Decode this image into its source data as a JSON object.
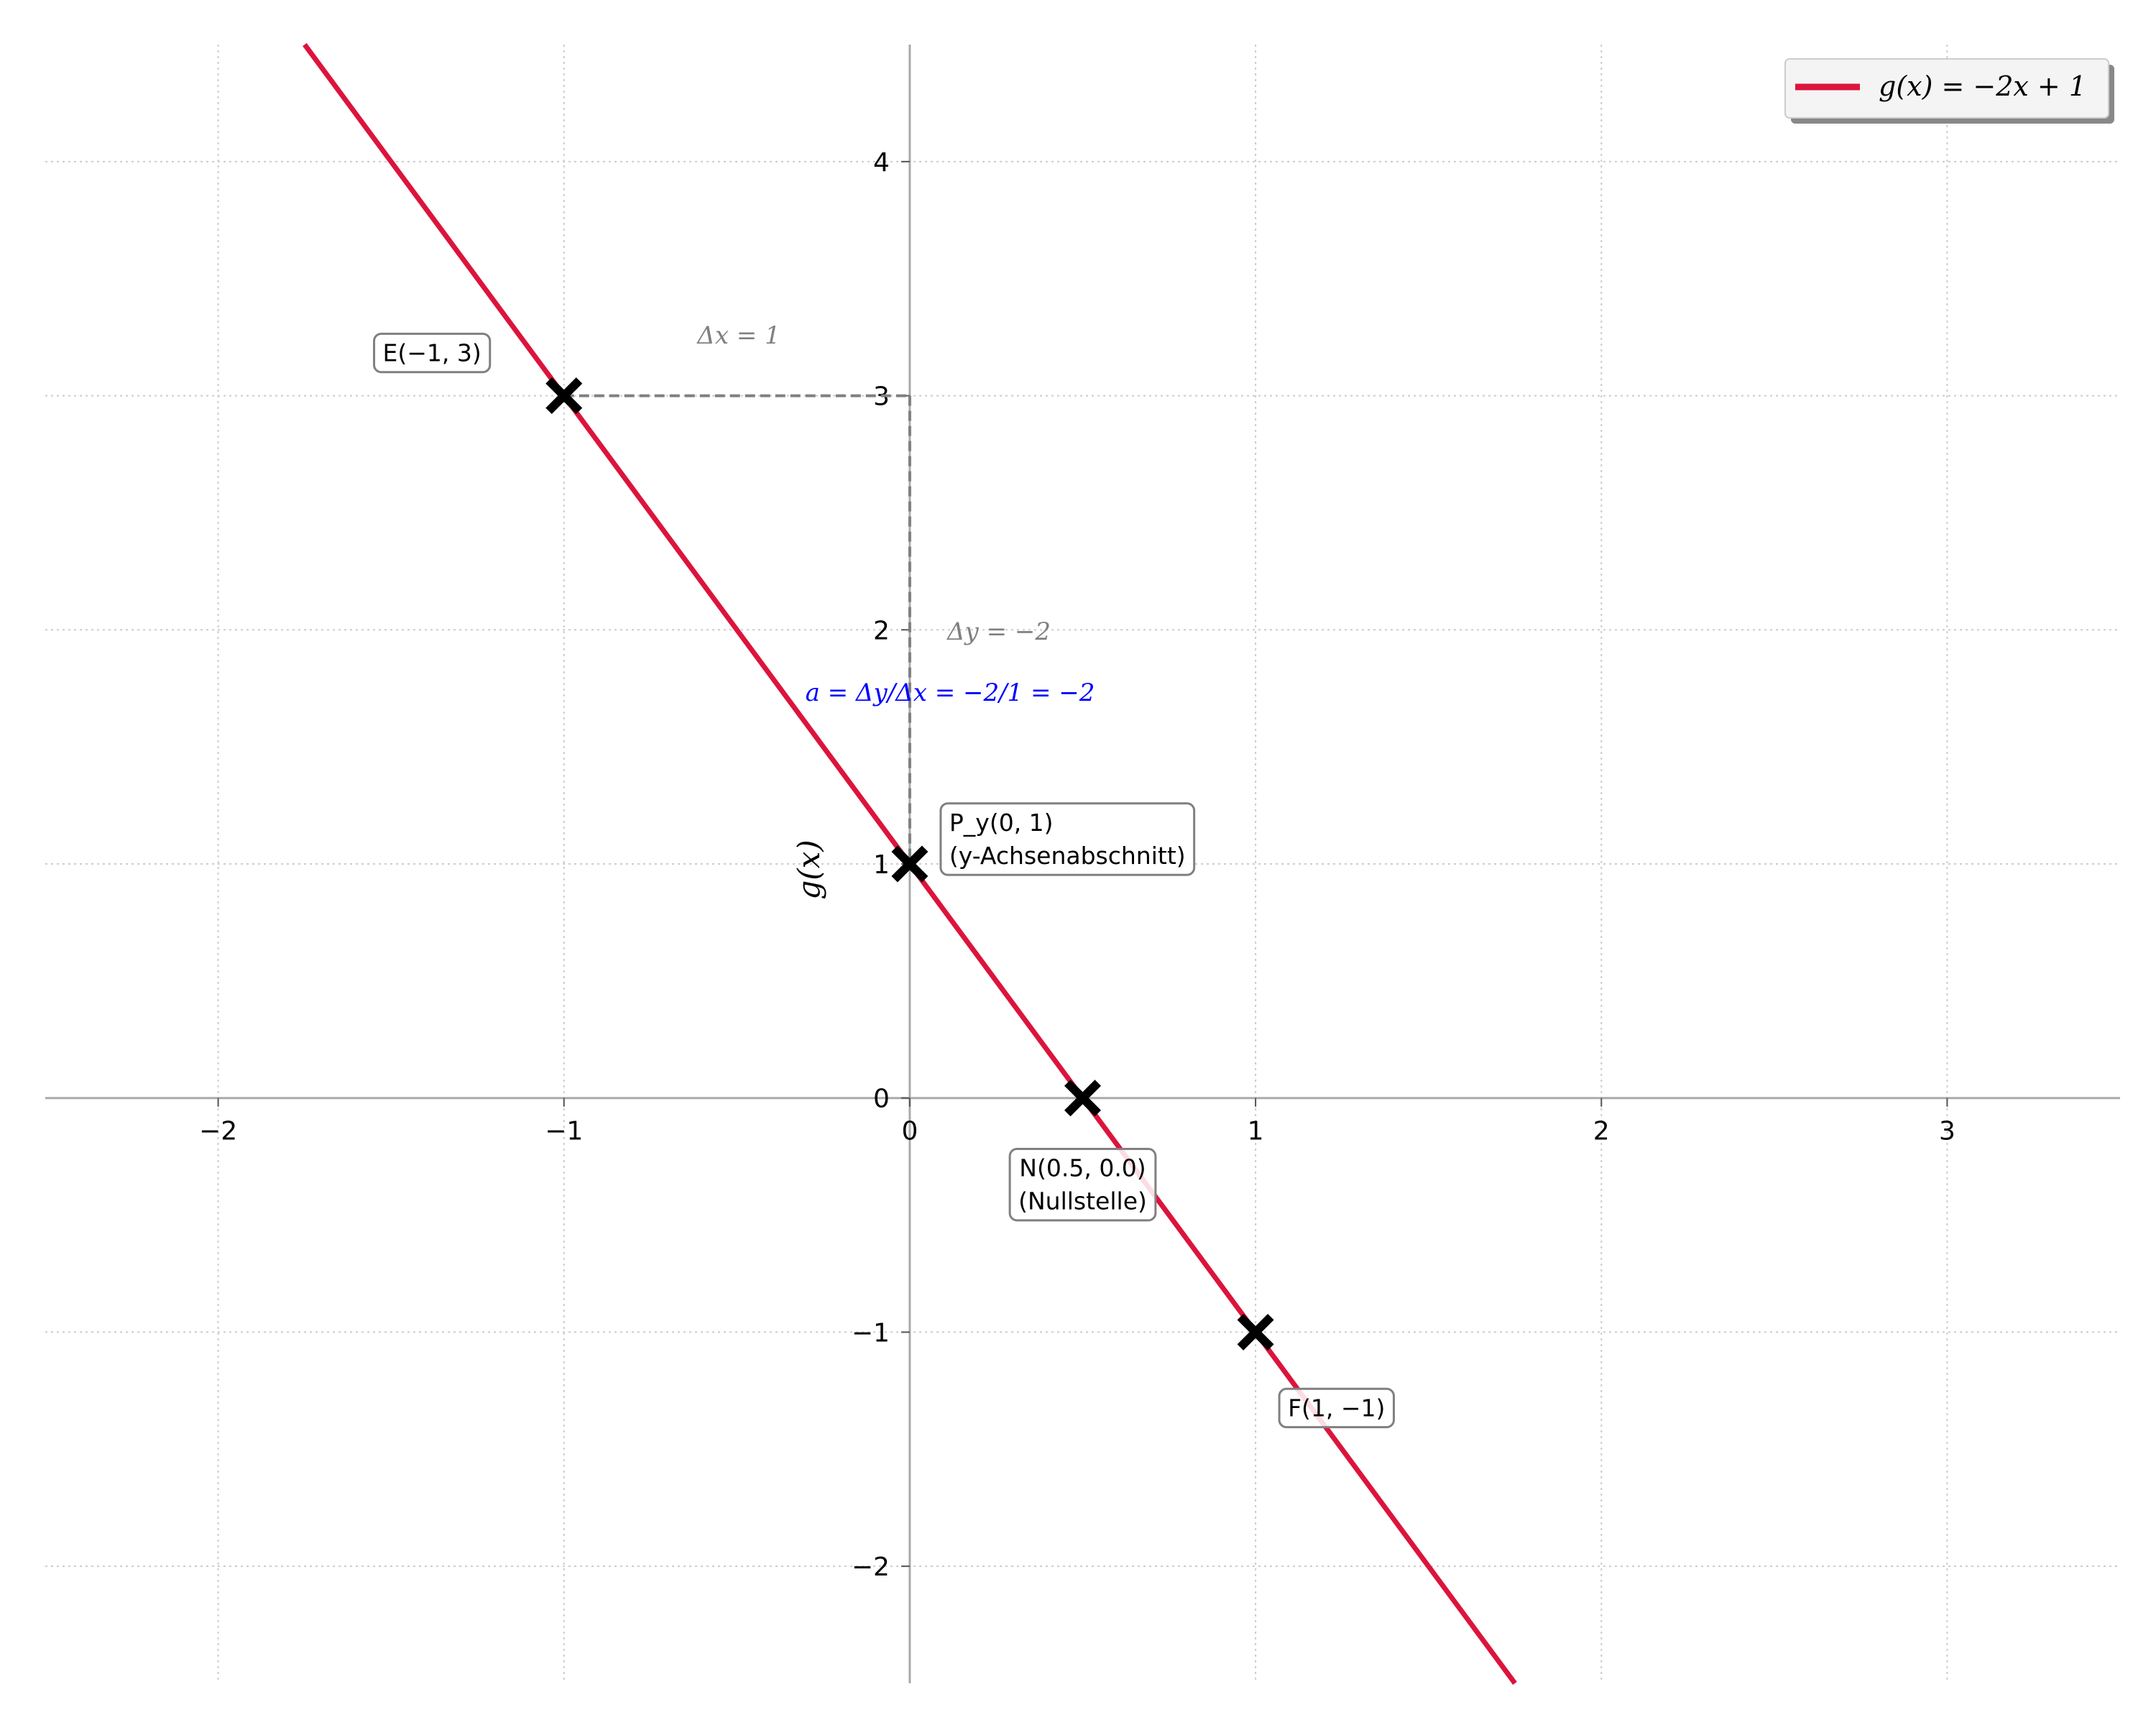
{
  "chart_data": {
    "type": "line",
    "function": "g(x) = -2x + 1",
    "slope": -2,
    "intercept": 1,
    "xlim": [
      -2.5,
      3.5
    ],
    "ylim": [
      -2.5,
      4.5
    ],
    "x_ticks": [
      -2,
      -1,
      0,
      1,
      2,
      3
    ],
    "y_ticks": [
      -2,
      -1,
      0,
      1,
      2,
      3,
      4
    ],
    "x_tick_labels": [
      "−2",
      "−1",
      "0",
      "1",
      "2",
      "3"
    ],
    "y_tick_labels": [
      "−2",
      "−1",
      "0",
      "1",
      "2",
      "3",
      "4"
    ],
    "xlabel": "",
    "ylabel": "g(x)",
    "grid": true,
    "legend_position": "top-right",
    "series": [
      {
        "name": "g(x) = −2x + 1",
        "color": "#dc143c",
        "x": [
          -1.75,
          1.75
        ],
        "y": [
          4.5,
          -2.5
        ]
      }
    ],
    "points": [
      {
        "id": "E",
        "x": -1,
        "y": 3,
        "label": [
          "E(−1, 3)"
        ]
      },
      {
        "id": "Py",
        "x": 0,
        "y": 1,
        "label": [
          "P_y(0, 1)",
          "(y-Achsenabschnitt)"
        ]
      },
      {
        "id": "N",
        "x": 0.5,
        "y": 0,
        "label": [
          "N(0.5, 0.0)",
          "(Nullstelle)"
        ]
      },
      {
        "id": "F",
        "x": 1,
        "y": -1,
        "label": [
          "F(1, −1)"
        ]
      }
    ],
    "slope_triangle": {
      "from": [
        -1,
        3
      ],
      "corner": [
        0,
        3
      ],
      "to": [
        0,
        1
      ],
      "dx_label": "Δx = 1",
      "dy_label": "Δy = −2",
      "formula": "a = Δy/Δx = −2/1 = −2"
    },
    "colors": {
      "line": "#dc143c",
      "marker": "#000000",
      "axis": "#aaaaaa",
      "grid": "#cccccc",
      "helper": "#808080",
      "formula": "#0000ff"
    }
  }
}
